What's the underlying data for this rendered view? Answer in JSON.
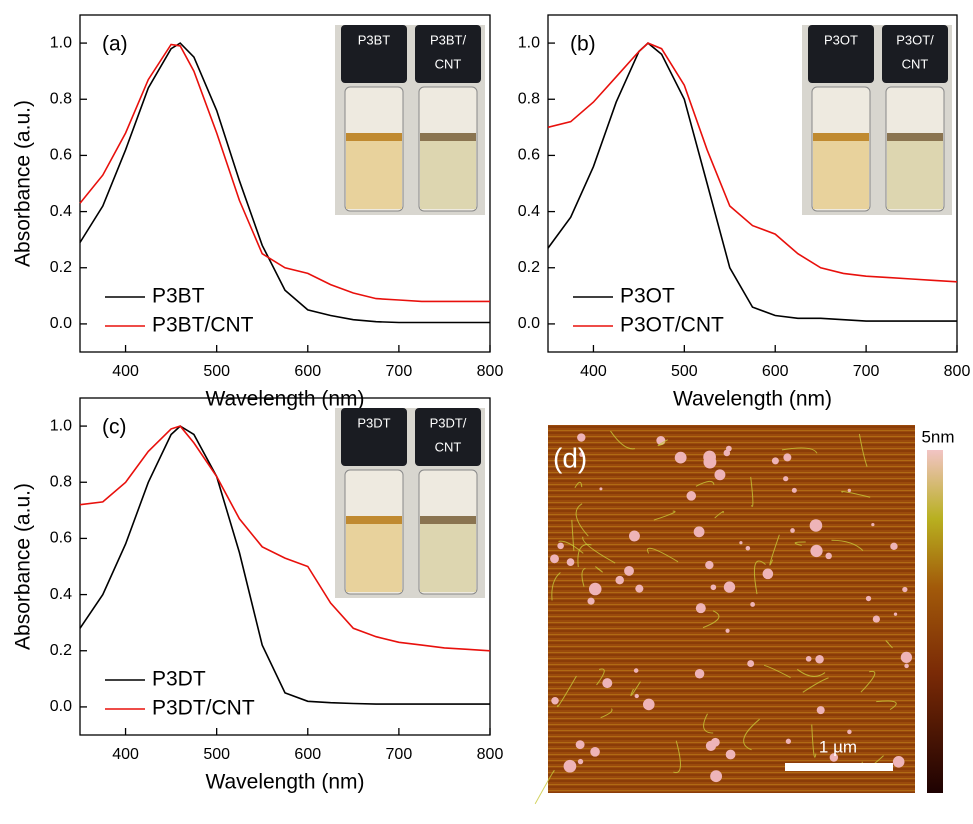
{
  "chart_data": [
    {
      "type": "line",
      "panel_label": "(a)",
      "ylabel": "Absorbance (a.u.)",
      "xlabel": "Wavelength (nm)",
      "x": [
        350,
        375,
        400,
        425,
        450,
        460,
        475,
        500,
        525,
        550,
        575,
        600,
        625,
        650,
        675,
        700,
        725,
        750,
        775,
        800
      ],
      "series": [
        {
          "name": "P3BT",
          "color": "#000000",
          "values": [
            0.29,
            0.42,
            0.62,
            0.84,
            0.98,
            1.0,
            0.95,
            0.76,
            0.51,
            0.28,
            0.12,
            0.05,
            0.03,
            0.015,
            0.008,
            0.005,
            0.005,
            0.005,
            0.005,
            0.005
          ]
        },
        {
          "name": "P3BT/CNT",
          "color": "#e8100c",
          "values": [
            0.43,
            0.53,
            0.68,
            0.87,
            0.995,
            0.99,
            0.9,
            0.68,
            0.44,
            0.25,
            0.2,
            0.18,
            0.14,
            0.11,
            0.09,
            0.085,
            0.08,
            0.08,
            0.08,
            0.08
          ]
        }
      ],
      "xlim": [
        350,
        800
      ],
      "xticks": [
        400,
        500,
        600,
        700,
        800
      ],
      "ylim": [
        -0.1,
        1.1
      ],
      "yticks": [
        {
          "value": 0,
          "label": "0.0"
        },
        {
          "value": 0.2,
          "label": "0.2"
        },
        {
          "value": 0.4,
          "label": "0.4"
        },
        {
          "value": 0.6,
          "label": "0.6"
        },
        {
          "value": 0.8,
          "label": "0.8"
        },
        {
          "value": 1,
          "label": "1.0"
        }
      ],
      "legend": "lower left",
      "inset_labels": [
        [
          "P3BT"
        ],
        [
          "P3BT/",
          "CNT"
        ]
      ]
    },
    {
      "type": "line",
      "panel_label": "(b)",
      "xlabel": "Wavelength (nm)",
      "x": [
        350,
        375,
        400,
        425,
        450,
        460,
        475,
        500,
        525,
        550,
        575,
        600,
        625,
        650,
        675,
        700,
        725,
        750,
        775,
        800
      ],
      "series": [
        {
          "name": "P3OT",
          "color": "#000000",
          "values": [
            0.27,
            0.38,
            0.56,
            0.79,
            0.97,
            1.0,
            0.96,
            0.8,
            0.5,
            0.2,
            0.06,
            0.03,
            0.02,
            0.02,
            0.015,
            0.01,
            0.01,
            0.01,
            0.01,
            0.01
          ]
        },
        {
          "name": "P3OT/CNT",
          "color": "#e8100c",
          "values": [
            0.7,
            0.72,
            0.79,
            0.88,
            0.97,
            1.0,
            0.98,
            0.85,
            0.62,
            0.42,
            0.35,
            0.32,
            0.25,
            0.2,
            0.18,
            0.17,
            0.165,
            0.16,
            0.155,
            0.15
          ]
        }
      ],
      "xlim": [
        350,
        800
      ],
      "xticks": [
        400,
        500,
        600,
        700,
        800
      ],
      "ylim": [
        -0.1,
        1.1
      ],
      "yticks": [
        {
          "value": 0,
          "label": "0.0"
        },
        {
          "value": 0.2,
          "label": "0.2"
        },
        {
          "value": 0.4,
          "label": "0.4"
        },
        {
          "value": 0.6,
          "label": "0.6"
        },
        {
          "value": 0.8,
          "label": "0.8"
        },
        {
          "value": 1,
          "label": "1.0"
        }
      ],
      "legend": "lower left",
      "inset_labels": [
        [
          "P3OT"
        ],
        [
          "P3OT/",
          "CNT"
        ]
      ]
    },
    {
      "type": "line",
      "panel_label": "(c)",
      "ylabel": "Absorbance (a.u.)",
      "xlabel": "Wavelength (nm)",
      "x": [
        350,
        375,
        400,
        425,
        450,
        460,
        475,
        500,
        525,
        550,
        575,
        600,
        625,
        650,
        675,
        700,
        725,
        750,
        775,
        800
      ],
      "series": [
        {
          "name": "P3DT",
          "color": "#000000",
          "values": [
            0.28,
            0.4,
            0.58,
            0.8,
            0.97,
            1.0,
            0.97,
            0.82,
            0.55,
            0.22,
            0.05,
            0.02,
            0.015,
            0.012,
            0.01,
            0.01,
            0.01,
            0.01,
            0.01,
            0.01
          ]
        },
        {
          "name": "P3DT/CNT",
          "color": "#e8100c",
          "values": [
            0.72,
            0.73,
            0.8,
            0.91,
            0.99,
            1.0,
            0.94,
            0.82,
            0.67,
            0.57,
            0.53,
            0.5,
            0.37,
            0.28,
            0.25,
            0.23,
            0.22,
            0.21,
            0.205,
            0.2
          ]
        }
      ],
      "xlim": [
        350,
        800
      ],
      "xticks": [
        400,
        500,
        600,
        700,
        800
      ],
      "ylim": [
        -0.1,
        1.1
      ],
      "yticks": [
        {
          "value": 0,
          "label": "0.0"
        },
        {
          "value": 0.2,
          "label": "0.2"
        },
        {
          "value": 0.4,
          "label": "0.4"
        },
        {
          "value": 0.6,
          "label": "0.6"
        },
        {
          "value": 0.8,
          "label": "0.8"
        },
        {
          "value": 1,
          "label": "1.0"
        }
      ],
      "legend": "lower left",
      "inset_labels": [
        [
          "P3DT"
        ],
        [
          "P3DT/",
          "CNT"
        ]
      ]
    }
  ],
  "image_panel": {
    "panel_label": "(d)",
    "scale_bar": "1 µm",
    "colorbar_max": "5nm"
  }
}
